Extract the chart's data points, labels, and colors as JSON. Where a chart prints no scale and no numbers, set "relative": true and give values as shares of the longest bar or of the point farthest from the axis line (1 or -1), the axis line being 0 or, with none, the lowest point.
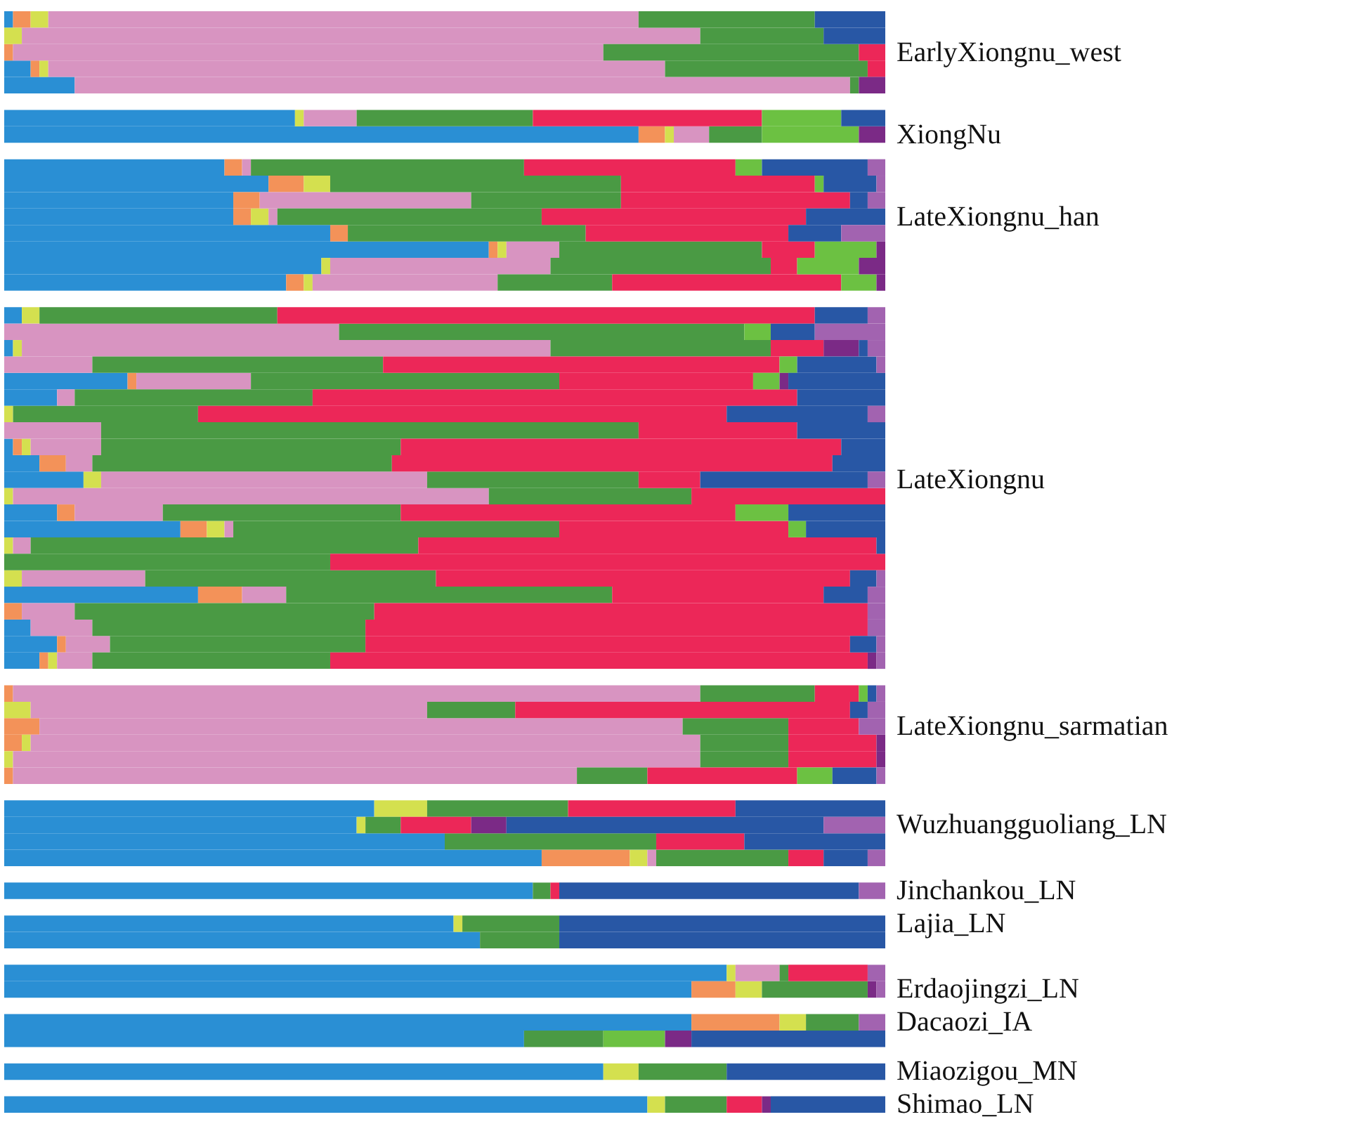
{
  "chart_data": {
    "type": "bar",
    "orientation": "horizontal",
    "stacked": true,
    "relative": true,
    "categories": [
      null,
      null,
      "EarlyXiongnu_west",
      null,
      null,
      null,
      null,
      "XiongNu",
      null,
      null,
      null,
      null,
      "LateXiongnu_han",
      null,
      null,
      null,
      null,
      null,
      null,
      null,
      null,
      null,
      null,
      null,
      null,
      null,
      null,
      null,
      "LateXiongnu",
      null,
      null,
      null,
      null,
      null,
      null,
      null,
      null,
      null,
      null,
      null,
      null,
      null,
      null,
      "LateXiongnu_sarmatian",
      null,
      null,
      null,
      null,
      null,
      "Wuzhuangguoliang_LN",
      null,
      null,
      null,
      "Jinchankou_LN",
      null,
      "Lajia_LN",
      null,
      null,
      null,
      "Erdaojingzi_LN",
      null,
      "Dacaozi_IA",
      null,
      null,
      "Miaozigou_MN",
      null,
      "Shimao_LN"
    ],
    "series": [
      {
        "color": "#2a8fd4",
        "values": [
          0.01,
          null,
          null,
          0.03,
          0.08,
          null,
          0.33,
          0.72,
          null,
          0.25,
          0.3,
          0.26,
          0.26,
          0.37,
          0.55,
          0.36,
          0.32,
          null,
          0.02,
          null,
          0.01,
          null,
          0.14,
          0.06,
          null,
          null,
          0.01,
          0.04,
          0.09,
          null,
          0.06,
          0.2,
          null,
          null,
          null,
          0.22,
          null,
          0.03,
          0.06,
          0.04,
          null,
          null,
          null,
          null,
          null,
          null,
          null,
          null,
          0.42,
          0.4,
          0.5,
          0.61,
          null,
          0.6,
          null,
          0.51,
          0.54,
          null,
          0.82,
          0.78,
          null,
          0.78,
          0.59,
          null,
          0.68,
          null,
          0.73
        ]
      },
      {
        "color": "#f39259",
        "values": [
          0.02,
          null,
          0.01,
          0.01,
          null,
          null,
          null,
          0.03,
          null,
          0.02,
          0.04,
          0.03,
          0.02,
          0.02,
          0.01,
          null,
          0.02,
          null,
          null,
          null,
          null,
          null,
          0.01,
          null,
          null,
          null,
          0.01,
          0.03,
          null,
          null,
          0.02,
          0.03,
          null,
          null,
          null,
          0.05,
          0.02,
          null,
          0.01,
          0.01,
          null,
          0.01,
          null,
          0.04,
          0.02,
          null,
          0.01,
          null,
          null,
          null,
          null,
          0.1,
          null,
          null,
          null,
          null,
          null,
          null,
          null,
          0.05,
          null,
          0.1,
          null,
          null,
          null,
          null,
          null
        ]
      },
      {
        "color": "#d4e04f",
        "values": [
          0.02,
          0.02,
          null,
          0.01,
          null,
          null,
          0.01,
          0.01,
          null,
          null,
          0.03,
          null,
          0.02,
          null,
          0.01,
          0.01,
          0.01,
          null,
          0.02,
          null,
          0.01,
          null,
          null,
          null,
          0.01,
          null,
          0.01,
          null,
          0.02,
          0.01,
          null,
          0.02,
          0.01,
          null,
          0.02,
          null,
          null,
          null,
          null,
          0.01,
          null,
          null,
          0.03,
          null,
          0.01,
          0.01,
          null,
          null,
          0.06,
          0.01,
          null,
          0.02,
          null,
          null,
          null,
          0.01,
          null,
          null,
          0.01,
          0.03,
          null,
          0.03,
          null,
          null,
          0.04,
          null,
          0.02
        ]
      },
      {
        "color": "#d894c1",
        "values": [
          0.67,
          0.77,
          0.67,
          0.7,
          0.88,
          null,
          0.06,
          0.04,
          null,
          0.01,
          null,
          0.24,
          0.01,
          null,
          0.06,
          0.25,
          0.21,
          null,
          null,
          0.38,
          0.6,
          0.1,
          0.13,
          0.02,
          null,
          0.11,
          0.08,
          0.03,
          0.37,
          0.54,
          0.1,
          0.01,
          0.02,
          null,
          0.14,
          0.05,
          0.06,
          0.07,
          0.05,
          0.04,
          null,
          0.78,
          0.45,
          0.73,
          0.76,
          0.78,
          0.64,
          null,
          null,
          null,
          null,
          0.01,
          null,
          null,
          null,
          null,
          null,
          null,
          0.05,
          null,
          null,
          null,
          null,
          null,
          null,
          null,
          null
        ]
      },
      {
        "color": "#4a9a44",
        "values": [
          0.2,
          0.14,
          0.29,
          0.23,
          0.01,
          null,
          0.2,
          0.06,
          null,
          0.31,
          0.33,
          0.17,
          0.3,
          0.27,
          0.23,
          0.25,
          0.13,
          null,
          0.27,
          0.46,
          0.25,
          0.33,
          0.35,
          0.27,
          0.21,
          0.61,
          0.34,
          0.34,
          0.24,
          0.23,
          0.27,
          0.37,
          0.44,
          0.37,
          0.33,
          0.37,
          0.34,
          0.31,
          0.29,
          0.27,
          null,
          0.13,
          0.1,
          0.12,
          0.1,
          0.1,
          0.08,
          null,
          0.16,
          0.04,
          0.24,
          0.15,
          null,
          0.02,
          null,
          0.11,
          0.09,
          null,
          0.01,
          0.12,
          null,
          0.06,
          0.09,
          null,
          0.1,
          null,
          0.07
        ]
      },
      {
        "color": "#ec2758",
        "values": [
          null,
          null,
          0.03,
          0.02,
          null,
          null,
          0.26,
          null,
          null,
          0.24,
          0.22,
          0.26,
          0.3,
          0.23,
          0.06,
          0.03,
          0.26,
          null,
          0.61,
          null,
          0.06,
          0.45,
          0.22,
          0.55,
          0.6,
          0.18,
          0.5,
          0.5,
          0.07,
          0.22,
          0.38,
          0.26,
          0.52,
          0.63,
          0.47,
          0.24,
          0.56,
          0.57,
          0.55,
          0.61,
          null,
          0.05,
          0.38,
          0.08,
          0.1,
          0.1,
          0.17,
          null,
          0.19,
          0.08,
          0.1,
          0.04,
          null,
          0.01,
          null,
          null,
          null,
          null,
          0.09,
          null,
          null,
          null,
          null,
          null,
          null,
          null,
          0.04
        ]
      },
      {
        "color": "#6cc142",
        "values": [
          null,
          null,
          null,
          null,
          null,
          null,
          0.09,
          0.11,
          null,
          0.03,
          0.01,
          null,
          null,
          null,
          0.07,
          0.07,
          0.04,
          null,
          null,
          0.03,
          null,
          0.02,
          0.03,
          null,
          null,
          null,
          null,
          null,
          null,
          null,
          0.06,
          0.02,
          null,
          null,
          null,
          null,
          null,
          null,
          null,
          null,
          null,
          0.01,
          null,
          null,
          null,
          null,
          0.04,
          null,
          null,
          null,
          null,
          null,
          null,
          null,
          null,
          null,
          null,
          null,
          null,
          null,
          null,
          null,
          0.07,
          null,
          null,
          null,
          null
        ]
      },
      {
        "color": "#7b2a86",
        "values": [
          null,
          null,
          null,
          null,
          0.03,
          null,
          null,
          0.03,
          null,
          null,
          null,
          null,
          null,
          null,
          0.01,
          0.03,
          0.01,
          null,
          null,
          null,
          0.04,
          null,
          0.01,
          null,
          null,
          null,
          null,
          null,
          null,
          null,
          null,
          null,
          null,
          null,
          null,
          null,
          null,
          null,
          null,
          0.01,
          null,
          null,
          null,
          null,
          0.01,
          0.01,
          null,
          null,
          null,
          0.04,
          null,
          null,
          null,
          null,
          null,
          null,
          null,
          null,
          null,
          0.01,
          null,
          null,
          0.03,
          null,
          null,
          null,
          0.01
        ]
      },
      {
        "color": "#2857a5",
        "values": [
          0.08,
          0.07,
          null,
          null,
          null,
          null,
          0.05,
          null,
          null,
          0.12,
          0.06,
          0.02,
          0.09,
          0.06,
          null,
          null,
          null,
          null,
          0.06,
          0.05,
          0.01,
          0.09,
          0.11,
          0.1,
          0.16,
          0.1,
          0.05,
          0.06,
          0.19,
          null,
          0.11,
          0.09,
          0.01,
          null,
          0.03,
          0.05,
          null,
          null,
          0.03,
          null,
          null,
          0.01,
          0.02,
          null,
          null,
          null,
          0.05,
          null,
          0.17,
          0.36,
          0.16,
          0.05,
          null,
          0.34,
          null,
          0.37,
          0.37,
          null,
          null,
          null,
          null,
          null,
          0.22,
          null,
          0.18,
          null,
          0.13
        ]
      },
      {
        "color": "#a263b0",
        "values": [
          null,
          null,
          null,
          null,
          null,
          null,
          null,
          null,
          null,
          0.02,
          0.01,
          0.02,
          null,
          0.05,
          null,
          null,
          null,
          null,
          0.02,
          0.08,
          0.02,
          0.01,
          null,
          null,
          0.02,
          null,
          null,
          null,
          0.02,
          null,
          null,
          null,
          null,
          null,
          0.01,
          0.02,
          0.02,
          0.02,
          0.01,
          0.01,
          null,
          0.01,
          0.02,
          0.03,
          null,
          null,
          0.01,
          null,
          null,
          0.07,
          null,
          0.02,
          null,
          0.03,
          null,
          null,
          null,
          null,
          0.02,
          0.01,
          null,
          0.03,
          null,
          null,
          null,
          null,
          null
        ]
      }
    ]
  }
}
